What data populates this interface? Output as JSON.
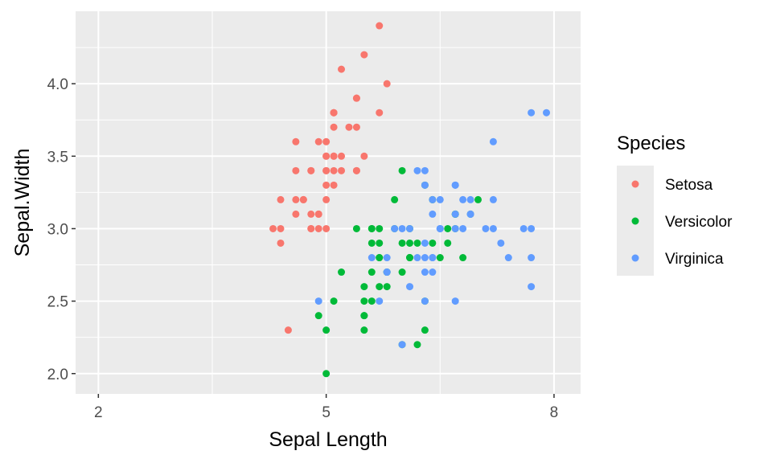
{
  "chart_data": {
    "type": "scatter",
    "xlabel": "Sepal Length",
    "ylabel": "Sepal.Width",
    "xlim": [
      1.7,
      8.35
    ],
    "ylim": [
      1.86,
      4.5
    ],
    "x_ticks": [
      2,
      5,
      8
    ],
    "x_tick_labels": [
      "2",
      "5",
      "8"
    ],
    "y_ticks": [
      2.0,
      2.5,
      3.0,
      3.5,
      4.0
    ],
    "y_tick_labels": [
      "2.0",
      "2.5",
      "3.0",
      "3.5",
      "4.0"
    ],
    "grid": true,
    "legend": {
      "title": "Species",
      "placement": "right"
    },
    "series": [
      {
        "name": "Setosa",
        "color": "#F8766D",
        "points": [
          [
            4.3,
            3.0
          ],
          [
            4.4,
            2.9
          ],
          [
            4.4,
            3.0
          ],
          [
            4.4,
            3.2
          ],
          [
            4.5,
            2.3
          ],
          [
            4.6,
            3.1
          ],
          [
            4.6,
            3.4
          ],
          [
            4.6,
            3.6
          ],
          [
            4.6,
            3.2
          ],
          [
            4.7,
            3.2
          ],
          [
            4.7,
            3.2
          ],
          [
            4.8,
            3.4
          ],
          [
            4.8,
            3.0
          ],
          [
            4.8,
            3.4
          ],
          [
            4.8,
            3.1
          ],
          [
            4.8,
            3.0
          ],
          [
            4.9,
            3.0
          ],
          [
            4.9,
            3.1
          ],
          [
            4.9,
            3.6
          ],
          [
            4.9,
            3.1
          ],
          [
            5.0,
            3.6
          ],
          [
            5.0,
            3.4
          ],
          [
            5.0,
            3.0
          ],
          [
            5.0,
            3.4
          ],
          [
            5.0,
            3.2
          ],
          [
            5.0,
            3.5
          ],
          [
            5.0,
            3.5
          ],
          [
            5.0,
            3.3
          ],
          [
            5.1,
            3.5
          ],
          [
            5.1,
            3.5
          ],
          [
            5.1,
            3.8
          ],
          [
            5.1,
            3.8
          ],
          [
            5.1,
            3.3
          ],
          [
            5.1,
            3.8
          ],
          [
            5.1,
            3.4
          ],
          [
            5.2,
            3.5
          ],
          [
            5.2,
            3.4
          ],
          [
            5.2,
            4.1
          ],
          [
            5.3,
            3.7
          ],
          [
            5.4,
            3.9
          ],
          [
            5.4,
            3.7
          ],
          [
            5.4,
            3.9
          ],
          [
            5.4,
            3.4
          ],
          [
            5.4,
            3.4
          ],
          [
            5.5,
            4.2
          ],
          [
            5.5,
            3.5
          ],
          [
            5.7,
            4.4
          ],
          [
            5.7,
            3.8
          ],
          [
            5.8,
            4.0
          ],
          [
            5.1,
            3.7
          ]
        ]
      },
      {
        "name": "Versicolor",
        "color": "#00BA38",
        "points": [
          [
            4.9,
            2.4
          ],
          [
            5.0,
            2.0
          ],
          [
            5.0,
            2.3
          ],
          [
            5.1,
            2.5
          ],
          [
            5.2,
            2.7
          ],
          [
            5.4,
            3.0
          ],
          [
            5.5,
            2.3
          ],
          [
            5.5,
            2.4
          ],
          [
            5.5,
            2.4
          ],
          [
            5.5,
            2.5
          ],
          [
            5.5,
            2.6
          ],
          [
            5.6,
            2.9
          ],
          [
            5.6,
            3.0
          ],
          [
            5.6,
            2.5
          ],
          [
            5.6,
            3.0
          ],
          [
            5.6,
            2.7
          ],
          [
            5.7,
            2.8
          ],
          [
            5.7,
            2.6
          ],
          [
            5.7,
            2.9
          ],
          [
            5.7,
            3.0
          ],
          [
            5.7,
            2.8
          ],
          [
            5.8,
            2.7
          ],
          [
            5.8,
            2.7
          ],
          [
            5.8,
            2.6
          ],
          [
            5.9,
            3.0
          ],
          [
            5.9,
            3.2
          ],
          [
            6.0,
            2.2
          ],
          [
            6.0,
            2.9
          ],
          [
            6.0,
            2.7
          ],
          [
            6.0,
            3.4
          ],
          [
            6.1,
            2.8
          ],
          [
            6.1,
            2.8
          ],
          [
            6.1,
            2.9
          ],
          [
            6.1,
            3.0
          ],
          [
            6.2,
            2.2
          ],
          [
            6.2,
            2.9
          ],
          [
            6.3,
            3.3
          ],
          [
            6.3,
            2.5
          ],
          [
            6.3,
            2.3
          ],
          [
            6.4,
            3.2
          ],
          [
            6.4,
            2.9
          ],
          [
            6.5,
            2.8
          ],
          [
            6.6,
            2.9
          ],
          [
            6.6,
            3.0
          ],
          [
            6.7,
            3.1
          ],
          [
            6.7,
            3.0
          ],
          [
            6.7,
            3.1
          ],
          [
            6.8,
            2.8
          ],
          [
            6.9,
            3.1
          ],
          [
            7.0,
            3.2
          ]
        ]
      },
      {
        "name": "Virginica",
        "color": "#619CFF",
        "points": [
          [
            4.9,
            2.5
          ],
          [
            5.6,
            2.8
          ],
          [
            5.7,
            2.5
          ],
          [
            5.8,
            2.7
          ],
          [
            5.8,
            2.8
          ],
          [
            5.8,
            2.7
          ],
          [
            5.9,
            3.0
          ],
          [
            6.0,
            2.2
          ],
          [
            6.0,
            3.0
          ],
          [
            6.1,
            3.0
          ],
          [
            6.1,
            2.6
          ],
          [
            6.2,
            2.8
          ],
          [
            6.2,
            3.4
          ],
          [
            6.3,
            3.3
          ],
          [
            6.3,
            2.9
          ],
          [
            6.3,
            2.5
          ],
          [
            6.3,
            2.8
          ],
          [
            6.3,
            2.7
          ],
          [
            6.3,
            3.4
          ],
          [
            6.4,
            2.8
          ],
          [
            6.4,
            3.2
          ],
          [
            6.4,
            2.7
          ],
          [
            6.4,
            2.8
          ],
          [
            6.4,
            3.1
          ],
          [
            6.5,
            3.0
          ],
          [
            6.5,
            3.2
          ],
          [
            6.5,
            3.0
          ],
          [
            6.5,
            3.0
          ],
          [
            6.7,
            2.5
          ],
          [
            6.7,
            3.3
          ],
          [
            6.7,
            3.0
          ],
          [
            6.7,
            3.1
          ],
          [
            6.7,
            3.3
          ],
          [
            6.8,
            3.0
          ],
          [
            6.8,
            3.2
          ],
          [
            6.9,
            3.1
          ],
          [
            6.9,
            3.2
          ],
          [
            6.9,
            3.1
          ],
          [
            7.1,
            3.0
          ],
          [
            7.2,
            3.6
          ],
          [
            7.2,
            3.2
          ],
          [
            7.2,
            3.0
          ],
          [
            7.3,
            2.9
          ],
          [
            7.4,
            2.8
          ],
          [
            7.6,
            3.0
          ],
          [
            7.7,
            3.8
          ],
          [
            7.7,
            2.6
          ],
          [
            7.7,
            2.8
          ],
          [
            7.7,
            3.0
          ],
          [
            7.9,
            3.8
          ]
        ]
      }
    ]
  }
}
